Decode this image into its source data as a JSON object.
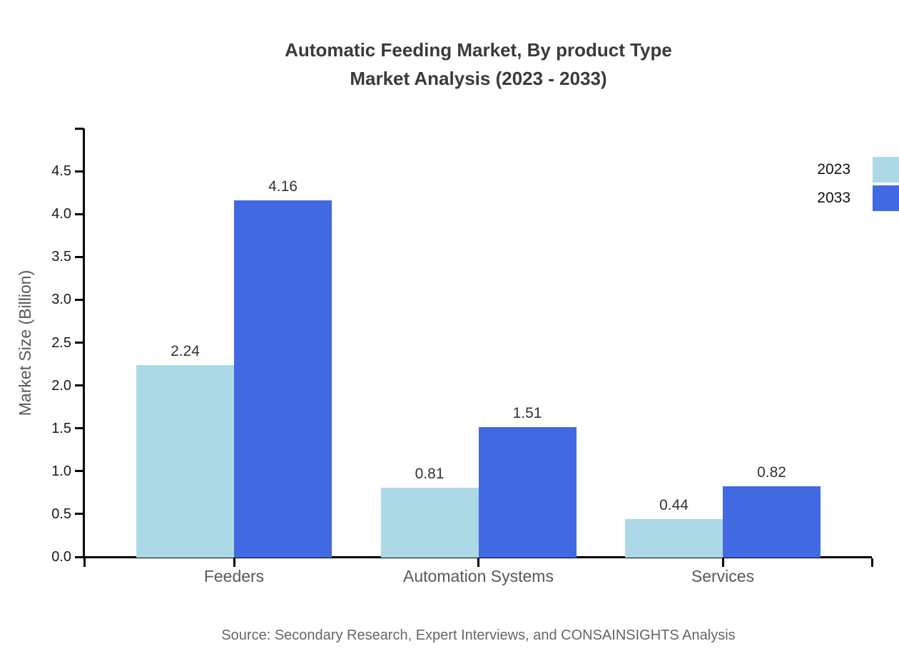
{
  "title": {
    "line1": "Automatic Feeding Market, By product Type",
    "line2": "Market Analysis (2023 - 2033)"
  },
  "source_text": "Source: Secondary Research, Expert Interviews, and CONSAINSIGHTS Analysis",
  "chart_data": {
    "type": "bar",
    "title": "Automatic Feeding Market, By product Type Market Analysis (2023 - 2033)",
    "xlabel": "",
    "ylabel": "Market Size (Billion)",
    "categories": [
      "Feeders",
      "Automation Systems",
      "Services"
    ],
    "series": [
      {
        "name": "2023",
        "color": "#ADD8E6",
        "values": [
          2.24,
          0.81,
          0.44
        ]
      },
      {
        "name": "2033",
        "color": "#4169E1",
        "values": [
          4.16,
          1.51,
          0.82
        ]
      }
    ],
    "ylim": [
      0,
      5
    ],
    "yticks": [
      0.0,
      0.5,
      1.0,
      1.5,
      2.0,
      2.5,
      3.0,
      3.5,
      4.0,
      4.5
    ],
    "grid": false,
    "value_labels": true,
    "legend_position": "upper right",
    "axis_color": "#000000"
  }
}
